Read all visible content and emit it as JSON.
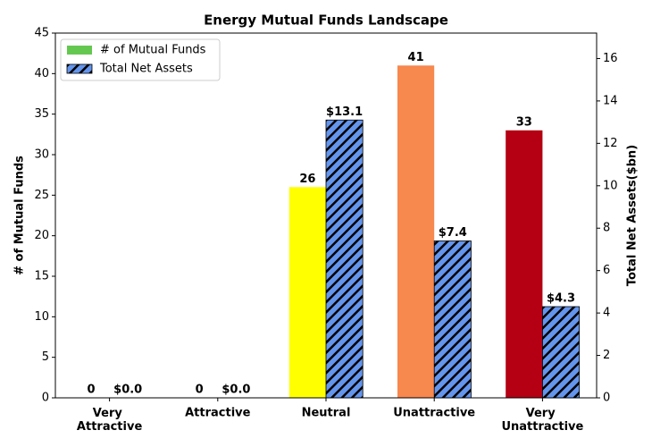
{
  "chart_data": {
    "type": "bar",
    "title": "Energy Mutual Funds Landscape",
    "categories": [
      "Very Attractive",
      "Attractive",
      "Neutral",
      "Unattractive",
      "Very Unattractive"
    ],
    "ylabel": "# of Mutual Funds",
    "y2label": "Total Net Assets($bn)",
    "ylim": [
      0,
      45
    ],
    "yticks": [
      0,
      5,
      10,
      15,
      20,
      25,
      30,
      35,
      40,
      45
    ],
    "y2lim": [
      0,
      17.2
    ],
    "y2ticks": [
      0,
      2,
      4,
      6,
      8,
      10,
      12,
      14,
      16
    ],
    "legend": "upper left",
    "series": [
      {
        "name": "# of Mutual Funds",
        "color": "#64c850",
        "colors": [
          "#1a9850",
          "#91cf60",
          "#ffff00",
          "#f7884e",
          "#b40012"
        ],
        "values": [
          0,
          0,
          26,
          41,
          33
        ]
      },
      {
        "name": "Total Net Assets",
        "color": "#6495ed",
        "hatch": true,
        "axis": "y2",
        "values": [
          0.0,
          0.0,
          13.1,
          7.4,
          4.3
        ],
        "value_labels": [
          "$0.0",
          "$0.0",
          "$13.1",
          "$7.4",
          "$4.3"
        ]
      }
    ]
  }
}
